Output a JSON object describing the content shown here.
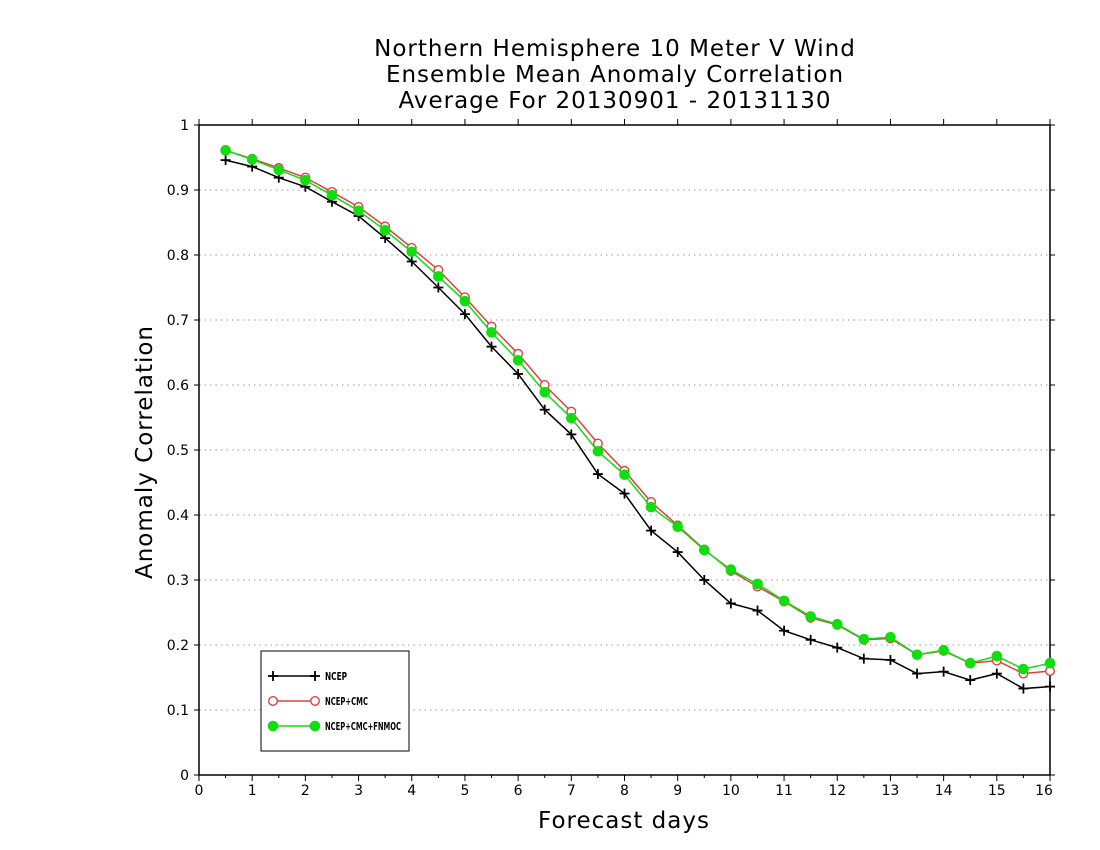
{
  "chart_data": {
    "type": "line",
    "title": [
      "Northern Hemisphere 10 Meter V Wind",
      "Ensemble Mean Anomaly Correlation",
      "Average For 20130901 - 20131130"
    ],
    "xlabel": "Forecast days",
    "ylabel": "Anomaly Correlation",
    "xlim": [
      0,
      16
    ],
    "ylim": [
      0,
      1
    ],
    "xticks": [
      "0",
      "1",
      "2",
      "3",
      "4",
      "5",
      "6",
      "7",
      "8",
      "9",
      "10",
      "11",
      "12",
      "13",
      "14",
      "15",
      "16"
    ],
    "yticks": [
      "0",
      "0.1",
      "0.2",
      "0.3",
      "0.4",
      "0.5",
      "0.6",
      "0.7",
      "0.8",
      "0.9",
      "1"
    ],
    "grid": "horizontal-dotted",
    "legend": "bottom-left",
    "x": [
      0.5,
      1,
      1.5,
      2,
      2.5,
      3,
      3.5,
      4,
      4.5,
      5,
      5.5,
      6,
      6.5,
      7,
      7.5,
      8,
      8.5,
      9,
      9.5,
      10,
      10.5,
      11,
      11.5,
      12,
      12.5,
      13,
      13.5,
      14,
      14.5,
      15,
      15.5,
      16
    ],
    "series": [
      {
        "name": "NCEP",
        "color": "#000000",
        "marker": "plus",
        "values": [
          0.946,
          0.936,
          0.919,
          0.905,
          0.882,
          0.86,
          0.826,
          0.79,
          0.75,
          0.709,
          0.659,
          0.617,
          0.562,
          0.524,
          0.463,
          0.433,
          0.376,
          0.343,
          0.3,
          0.264,
          0.253,
          0.222,
          0.208,
          0.196,
          0.179,
          0.177,
          0.156,
          0.159,
          0.146,
          0.156,
          0.133,
          0.136
        ]
      },
      {
        "name": "NCEP+CMC",
        "color": "#e04040",
        "marker": "open-circle",
        "values": [
          0.961,
          0.948,
          0.934,
          0.919,
          0.897,
          0.874,
          0.844,
          0.811,
          0.777,
          0.735,
          0.69,
          0.648,
          0.6,
          0.559,
          0.51,
          0.468,
          0.42,
          0.384,
          0.347,
          0.314,
          0.29,
          0.267,
          0.242,
          0.231,
          0.208,
          0.21,
          0.185,
          0.191,
          0.172,
          0.176,
          0.156,
          0.16
        ]
      },
      {
        "name": "NCEP+CMC+FNMOC",
        "color": "#11dd11",
        "marker": "filled-circle",
        "values": [
          0.961,
          0.947,
          0.931,
          0.915,
          0.892,
          0.868,
          0.838,
          0.805,
          0.767,
          0.729,
          0.681,
          0.638,
          0.589,
          0.549,
          0.498,
          0.462,
          0.412,
          0.382,
          0.346,
          0.316,
          0.294,
          0.268,
          0.244,
          0.232,
          0.209,
          0.212,
          0.185,
          0.192,
          0.172,
          0.183,
          0.163,
          0.172
        ]
      }
    ]
  }
}
